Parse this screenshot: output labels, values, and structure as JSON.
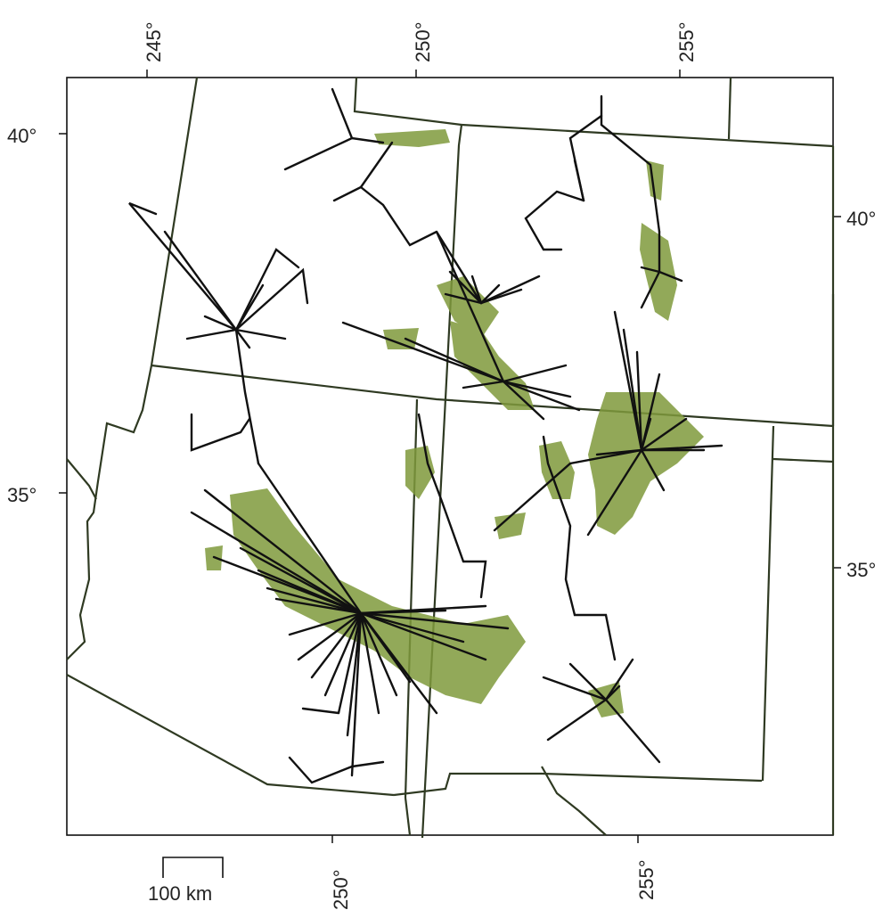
{
  "map": {
    "top_longitude_labels": [
      "245°",
      "250°",
      "255°"
    ],
    "bottom_longitude_labels": [
      "250°",
      "255°"
    ],
    "left_latitude_labels": [
      "40°",
      "35°"
    ],
    "right_latitude_labels": [
      "40°",
      "35°"
    ],
    "scale_bar_label": "100 km",
    "colors": {
      "border": "#2f3a22",
      "route": "#111111",
      "vegetation": "#7f9a3c"
    }
  }
}
